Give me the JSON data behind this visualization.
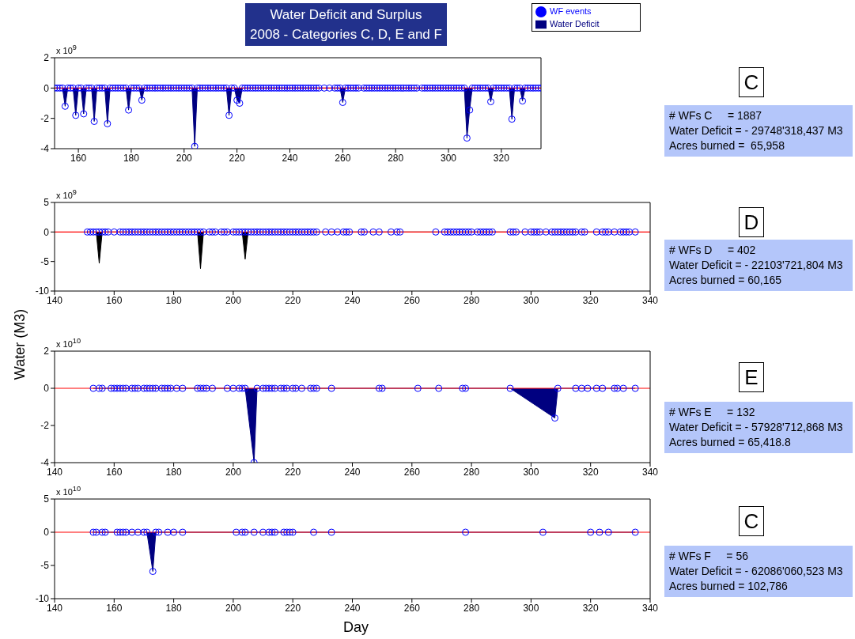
{
  "chart_data": [
    {
      "type": "area",
      "title": "Water Deficit  and  Surplus",
      "subtitle": "2008 - Categories C, D, E and F",
      "legend": "top right",
      "xlim": [
        151,
        335
      ],
      "xticks": [
        160,
        180,
        200,
        220,
        240,
        260,
        280,
        300,
        320
      ],
      "ylim": [
        -4,
        2
      ],
      "yticks": [
        -4,
        -2,
        0,
        2
      ],
      "ref_lines": [
        {
          "axis": "y",
          "value": 0,
          "color": "#ff0000"
        }
      ],
      "annotations": [
        "x 10$^{9}$",
        "C",
        "# WFs C     = 1887",
        "Water Deficit = - 29748'318,437 M3",
        "Acres burned =  65,958"
      ],
      "series": [
        {
          "name": "Water Deficit",
          "color": "#000080",
          "x": [
            151,
            154,
            155,
            156,
            158,
            159,
            160,
            161,
            162,
            163,
            165,
            166,
            167,
            170,
            171,
            172,
            178,
            179,
            180,
            183,
            184,
            185,
            203,
            204,
            205,
            216,
            217,
            218,
            219,
            220,
            221,
            222,
            259,
            260,
            261,
            306,
            307,
            308,
            309,
            315,
            316,
            317,
            323,
            324,
            325,
            327,
            328,
            329,
            335
          ],
          "values": [
            0,
            0,
            -1.2,
            0,
            0,
            -1.8,
            0,
            0,
            -1.7,
            0,
            0,
            -2.2,
            0,
            0,
            -2.35,
            0,
            0,
            -1.45,
            0,
            0,
            -0.8,
            0,
            0,
            -3.85,
            0,
            0,
            -1.8,
            0,
            0,
            -0.8,
            -1,
            0,
            0,
            -0.95,
            0,
            0,
            -3.3,
            -1.45,
            0,
            0,
            -0.9,
            0,
            0,
            -2.05,
            0,
            0,
            -0.85,
            0,
            0
          ]
        },
        {
          "name": "WF events",
          "type": "scatter",
          "marker": "circle",
          "color": "#0000ff",
          "x": [
            151,
            152,
            153,
            154,
            155,
            156,
            157,
            158,
            159,
            160,
            161,
            162,
            163,
            164,
            165,
            166,
            167,
            168,
            169,
            170,
            171,
            172,
            173,
            174,
            175,
            176,
            177,
            178,
            179,
            180,
            181,
            182,
            183,
            184,
            185,
            186,
            187,
            188,
            189,
            190,
            191,
            192,
            193,
            194,
            195,
            196,
            197,
            198,
            199,
            200,
            201,
            202,
            203,
            204,
            205,
            206,
            207,
            208,
            209,
            210,
            211,
            212,
            213,
            214,
            215,
            216,
            217,
            218,
            219,
            220,
            221,
            222,
            223,
            224,
            225,
            226,
            227,
            228,
            229,
            230,
            231,
            232,
            233,
            234,
            235,
            236,
            237,
            238,
            239,
            240,
            241,
            242,
            243,
            244,
            245,
            246,
            247,
            248,
            249,
            250,
            251,
            253,
            255,
            257,
            258,
            259,
            260,
            261,
            262,
            263,
            264,
            265,
            266,
            268,
            269,
            270,
            271,
            272,
            273,
            274,
            275,
            276,
            277,
            278,
            279,
            280,
            281,
            282,
            283,
            284,
            285,
            286,
            287,
            288,
            290,
            291,
            292,
            293,
            294,
            295,
            296,
            297,
            298,
            299,
            300,
            301,
            302,
            303,
            304,
            305,
            306,
            307,
            308,
            309,
            310,
            311,
            312,
            313,
            314,
            315,
            316,
            317,
            318,
            319,
            320,
            321,
            322,
            323,
            324,
            325,
            326,
            327,
            328,
            329,
            330,
            331,
            332,
            333,
            334,
            335
          ],
          "values": [
            0,
            0,
            0,
            0,
            -1.2,
            0,
            0,
            0,
            -1.8,
            0,
            0,
            -1.7,
            0,
            0,
            0,
            -2.2,
            0,
            0,
            0,
            0,
            -2.35,
            0,
            0,
            0,
            0,
            0,
            0,
            0,
            -1.45,
            0,
            0,
            0,
            0,
            -0.8,
            0,
            0,
            0,
            0,
            0,
            0,
            0,
            0,
            0,
            0,
            0,
            0,
            0,
            0,
            0,
            0,
            0,
            0,
            0,
            -3.85,
            0,
            0,
            0,
            0,
            0,
            0,
            0,
            0,
            0,
            0,
            0,
            0,
            -1.8,
            0,
            0,
            -0.8,
            -1,
            0,
            0,
            0,
            0,
            0,
            0,
            0,
            0,
            0,
            0,
            0,
            0,
            0,
            0,
            0,
            0,
            0,
            0,
            0,
            0,
            0,
            0,
            0,
            0,
            0,
            0,
            0,
            0,
            0,
            0,
            0,
            0,
            0,
            0,
            0,
            -0.95,
            0,
            0,
            0,
            0,
            0,
            0,
            0,
            0,
            0,
            0,
            0,
            0,
            0,
            0,
            0,
            0,
            0,
            0,
            0,
            0,
            0,
            0,
            0,
            0,
            0,
            0,
            0,
            0,
            0,
            0,
            0,
            0,
            0,
            0,
            0,
            0,
            0,
            0,
            0,
            0,
            0,
            0,
            0,
            0,
            -3.3,
            -1.45,
            0,
            0,
            0,
            0,
            0,
            0,
            0,
            -0.9,
            0,
            0,
            0,
            0,
            0,
            0,
            0,
            -2.05,
            0,
            0,
            0,
            -0.85,
            0,
            0,
            0,
            0,
            0,
            0,
            0
          ]
        }
      ]
    },
    {
      "type": "area",
      "xlim": [
        140,
        340
      ],
      "xticks": [
        140,
        160,
        180,
        200,
        220,
        240,
        260,
        280,
        300,
        320,
        340
      ],
      "ylim": [
        -10,
        5
      ],
      "yticks": [
        -10,
        -5,
        0,
        5
      ],
      "ref_lines": [
        {
          "axis": "y",
          "value": 0,
          "color": "#ff0000"
        }
      ],
      "annotations": [
        "x 10$^{9}$",
        "D",
        "# WFs D     = 402",
        "Water Deficit = - 22103'721,804 M3",
        "Acres burned = 60,165"
      ],
      "series": [
        {
          "color": "#000000",
          "x": [
            151,
            154,
            155,
            156,
            188,
            189,
            190,
            203,
            204,
            205,
            335
          ],
          "values": [
            0,
            0,
            -5.3,
            0,
            0,
            -6.2,
            0,
            0,
            -4.6,
            0,
            0
          ]
        },
        {
          "type": "scatter",
          "marker": "circle",
          "color": "#0000ff",
          "x": [
            151,
            152,
            153,
            154,
            155,
            156,
            157,
            158,
            160,
            162,
            163,
            164,
            165,
            166,
            167,
            168,
            169,
            170,
            171,
            172,
            173,
            174,
            175,
            176,
            177,
            178,
            179,
            180,
            181,
            182,
            183,
            184,
            185,
            186,
            187,
            188,
            189,
            190,
            192,
            193,
            194,
            196,
            197,
            198,
            200,
            201,
            202,
            203,
            204,
            205,
            206,
            207,
            208,
            209,
            210,
            211,
            212,
            213,
            214,
            215,
            216,
            217,
            218,
            219,
            220,
            221,
            222,
            223,
            224,
            225,
            226,
            227,
            228,
            231,
            233,
            235,
            237,
            238,
            239,
            243,
            244,
            247,
            249,
            253,
            255,
            256,
            268,
            271,
            272,
            273,
            274,
            275,
            276,
            277,
            278,
            279,
            280,
            282,
            283,
            284,
            285,
            286,
            287,
            293,
            294,
            295,
            298,
            300,
            301,
            302,
            303,
            305,
            307,
            308,
            309,
            310,
            311,
            312,
            313,
            314,
            315,
            317,
            318,
            322,
            324,
            325,
            326,
            328,
            330,
            331,
            332,
            333,
            335
          ],
          "values": [
            0,
            0,
            0,
            0,
            0,
            0,
            0,
            0,
            0,
            0,
            0,
            0,
            0,
            0,
            0,
            0,
            0,
            0,
            0,
            0,
            0,
            0,
            0,
            0,
            0,
            0,
            0,
            0,
            0,
            0,
            0,
            0,
            0,
            0,
            0,
            0,
            0,
            0,
            0,
            0,
            0,
            0,
            0,
            0,
            0,
            0,
            0,
            0,
            0,
            0,
            0,
            0,
            0,
            0,
            0,
            0,
            0,
            0,
            0,
            0,
            0,
            0,
            0,
            0,
            0,
            0,
            0,
            0,
            0,
            0,
            0,
            0,
            0,
            0,
            0,
            0,
            0,
            0,
            0,
            0,
            0,
            0,
            0,
            0,
            0,
            0,
            0,
            0,
            0,
            0,
            0,
            0,
            0,
            0,
            0,
            0,
            0,
            0,
            0,
            0,
            0,
            0,
            0,
            0,
            0,
            0,
            0,
            0,
            0,
            0,
            0,
            0,
            0,
            0,
            0,
            0,
            0,
            0,
            0,
            0,
            0,
            0,
            0,
            0,
            0,
            0,
            0,
            0,
            0,
            0,
            0,
            0,
            0
          ]
        }
      ]
    },
    {
      "type": "area",
      "ylabel": "Water (M3)",
      "xlim": [
        140,
        340
      ],
      "xticks": [
        140,
        160,
        180,
        200,
        220,
        240,
        260,
        280,
        300,
        320,
        340
      ],
      "ylim": [
        -4,
        2
      ],
      "yticks": [
        -4,
        -2,
        0,
        2
      ],
      "ref_lines": [
        {
          "axis": "y",
          "value": 0,
          "color": "#ff0000"
        }
      ],
      "annotations": [
        "x 10$^{10}$",
        "E",
        "# WFs E     = 132",
        "Water Deficit = - 57928'712,868 M3",
        "Acres burned = 65,418.8"
      ],
      "series": [
        {
          "color": "#000080",
          "x": [
            153,
            204,
            207,
            208,
            293,
            308,
            309,
            335
          ],
          "values": [
            0,
            0,
            -4,
            0,
            0,
            -1.6,
            0,
            0
          ]
        },
        {
          "type": "scatter",
          "marker": "circle",
          "color": "#0000ff",
          "x": [
            153,
            155,
            156,
            159,
            160,
            161,
            162,
            163,
            164,
            166,
            167,
            168,
            170,
            171,
            172,
            173,
            174,
            176,
            177,
            178,
            179,
            181,
            183,
            188,
            189,
            190,
            191,
            193,
            198,
            200,
            202,
            203,
            204,
            207,
            208,
            210,
            211,
            212,
            213,
            214,
            216,
            217,
            218,
            220,
            221,
            223,
            226,
            227,
            228,
            233,
            249,
            250,
            262,
            269,
            277,
            278,
            293,
            308,
            309,
            315,
            317,
            319,
            322,
            324,
            328,
            329,
            331,
            335
          ],
          "values": [
            0,
            0,
            0,
            0,
            0,
            0,
            0,
            0,
            0,
            0,
            0,
            0,
            0,
            0,
            0,
            0,
            0,
            0,
            0,
            0,
            0,
            0,
            0,
            0,
            0,
            0,
            0,
            0,
            0,
            0,
            0,
            0,
            0,
            -4,
            0,
            0,
            0,
            0,
            0,
            0,
            0,
            0,
            0,
            0,
            0,
            0,
            0,
            0,
            0,
            0,
            0,
            0,
            0,
            0,
            0,
            0,
            0,
            -1.6,
            0,
            0,
            0,
            0,
            0,
            0,
            0,
            0,
            0,
            0
          ]
        }
      ]
    },
    {
      "type": "area",
      "xlabel": "Day",
      "xlim": [
        140,
        340
      ],
      "xticks": [
        140,
        160,
        180,
        200,
        220,
        240,
        260,
        280,
        300,
        320,
        340
      ],
      "ylim": [
        -10,
        5
      ],
      "yticks": [
        -10,
        -5,
        0,
        5
      ],
      "ref_lines": [
        {
          "axis": "y",
          "value": 0,
          "color": "#ff0000"
        }
      ],
      "annotations": [
        "x 10$^{10}$",
        "C",
        "# WFs F     = 56",
        "Water Deficit = - 62086'060,523 M3",
        "Acres burned = 102,786"
      ],
      "series": [
        {
          "color": "#000080",
          "x": [
            153,
            171,
            173,
            174,
            335
          ],
          "values": [
            0,
            0,
            -5.9,
            0,
            0
          ]
        },
        {
          "type": "scatter",
          "marker": "circle",
          "color": "#0000ff",
          "x": [
            153,
            154,
            156,
            157,
            161,
            162,
            163,
            164,
            166,
            168,
            170,
            171,
            173,
            174,
            175,
            178,
            180,
            183,
            201,
            203,
            204,
            207,
            210,
            212,
            213,
            214,
            217,
            218,
            219,
            220,
            227,
            233,
            278,
            304,
            320,
            323,
            326,
            335
          ],
          "values": [
            0,
            0,
            0,
            0,
            0,
            0,
            0,
            0,
            0,
            0,
            0,
            0,
            -5.9,
            0,
            0,
            0,
            0,
            0,
            0,
            0,
            0,
            0,
            0,
            0,
            0,
            0,
            0,
            0,
            0,
            0,
            0,
            0,
            0,
            0,
            0,
            0,
            0,
            0
          ]
        }
      ]
    }
  ]
}
